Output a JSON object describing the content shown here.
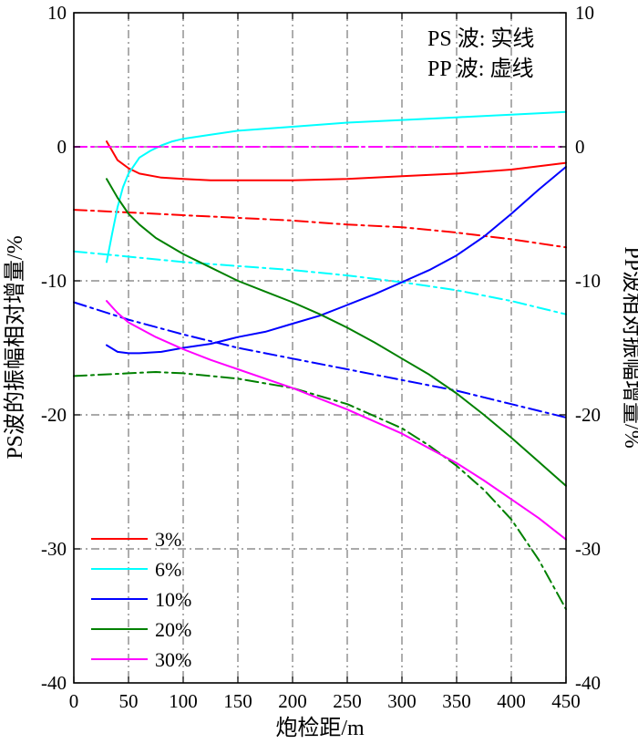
{
  "chart_data": {
    "type": "line",
    "title": "",
    "xlabel": "炮检距/m",
    "ylabel_left": "PS波的振幅相对增量/%",
    "ylabel_right": "PP波相对振幅增量/%",
    "xlim": [
      0,
      450
    ],
    "ylim": [
      -40,
      10
    ],
    "xticks": [
      0,
      50,
      100,
      150,
      200,
      250,
      300,
      350,
      400,
      450
    ],
    "yticks": [
      -40,
      -30,
      -20,
      -10,
      0,
      10
    ],
    "grid": true,
    "annotations": [
      "PS 波: 实线",
      "PP 波: 虚线"
    ],
    "legend_position": "bottom-left",
    "series": [
      {
        "name": "3%",
        "wave": "PS",
        "style": "solid",
        "color": "#ff0000",
        "x": [
          30,
          35,
          40,
          50,
          60,
          80,
          100,
          125,
          150,
          200,
          250,
          300,
          350,
          400,
          450
        ],
        "y": [
          0.4,
          -0.3,
          -1.0,
          -1.6,
          -2.0,
          -2.3,
          -2.4,
          -2.5,
          -2.5,
          -2.5,
          -2.4,
          -2.2,
          -2.0,
          -1.7,
          -1.2
        ]
      },
      {
        "name": "3%",
        "wave": "PP",
        "style": "dashdot",
        "color": "#ff0000",
        "x": [
          0,
          50,
          100,
          150,
          200,
          250,
          300,
          350,
          400,
          450
        ],
        "y": [
          -4.7,
          -4.9,
          -5.1,
          -5.3,
          -5.5,
          -5.8,
          -6.0,
          -6.4,
          -6.9,
          -7.5
        ]
      },
      {
        "name": "6%",
        "wave": "PS",
        "style": "solid",
        "color": "#00ffff",
        "x": [
          30,
          35,
          40,
          45,
          50,
          60,
          70,
          80,
          90,
          100,
          125,
          150,
          200,
          250,
          300,
          350,
          400,
          450
        ],
        "y": [
          -8.6,
          -6.5,
          -4.5,
          -3.0,
          -2.0,
          -0.8,
          -0.3,
          0.1,
          0.4,
          0.6,
          0.9,
          1.2,
          1.5,
          1.8,
          2.0,
          2.2,
          2.4,
          2.6
        ]
      },
      {
        "name": "6%",
        "wave": "PP",
        "style": "dashdot",
        "color": "#00ffff",
        "x": [
          0,
          50,
          100,
          150,
          200,
          250,
          300,
          350,
          400,
          450
        ],
        "y": [
          -7.8,
          -8.2,
          -8.6,
          -8.9,
          -9.2,
          -9.6,
          -10.1,
          -10.7,
          -11.5,
          -12.5
        ]
      },
      {
        "name": "10%",
        "wave": "PS",
        "style": "solid",
        "color": "#0000ff",
        "x": [
          30,
          40,
          50,
          60,
          80,
          100,
          125,
          150,
          175,
          200,
          225,
          250,
          275,
          300,
          325,
          350,
          375,
          400,
          425,
          450
        ],
        "y": [
          -14.8,
          -15.3,
          -15.4,
          -15.4,
          -15.3,
          -15.0,
          -14.7,
          -14.2,
          -13.8,
          -13.2,
          -12.6,
          -11.8,
          -11.0,
          -10.1,
          -9.2,
          -8.1,
          -6.7,
          -5.0,
          -3.2,
          -1.5
        ]
      },
      {
        "name": "10%",
        "wave": "PP",
        "style": "dashdot",
        "color": "#0000ff",
        "x": [
          0,
          50,
          100,
          150,
          200,
          250,
          300,
          350,
          400,
          450
        ],
        "y": [
          -11.6,
          -12.9,
          -14.0,
          -15.0,
          -15.8,
          -16.6,
          -17.4,
          -18.2,
          -19.2,
          -20.2
        ]
      },
      {
        "name": "20%",
        "wave": "PS",
        "style": "solid",
        "color": "#008000",
        "x": [
          30,
          40,
          50,
          60,
          75,
          100,
          125,
          150,
          175,
          200,
          225,
          250,
          275,
          300,
          325,
          350,
          375,
          400,
          425,
          450
        ],
        "y": [
          -2.4,
          -3.8,
          -5.0,
          -5.8,
          -6.8,
          -8.0,
          -9.0,
          -10.0,
          -10.8,
          -11.6,
          -12.5,
          -13.5,
          -14.6,
          -15.8,
          -17.0,
          -18.4,
          -20.0,
          -21.7,
          -23.5,
          -25.3
        ]
      },
      {
        "name": "20%",
        "wave": "PP",
        "style": "dashdot",
        "color": "#008000",
        "x": [
          0,
          25,
          50,
          75,
          100,
          150,
          200,
          250,
          300,
          325,
          350,
          375,
          400,
          425,
          450
        ],
        "y": [
          -17.1,
          -17.0,
          -16.9,
          -16.8,
          -16.9,
          -17.3,
          -18.0,
          -19.2,
          -21.0,
          -22.3,
          -23.8,
          -25.6,
          -27.8,
          -30.8,
          -34.5
        ]
      },
      {
        "name": "30%",
        "wave": "PS",
        "style": "solid",
        "color": "#ff00ff",
        "x": [
          30,
          40,
          50,
          75,
          100,
          125,
          150,
          175,
          200,
          225,
          250,
          275,
          300,
          325,
          350,
          375,
          400,
          425,
          450
        ],
        "y": [
          -11.5,
          -12.4,
          -13.1,
          -14.2,
          -15.1,
          -15.9,
          -16.6,
          -17.3,
          -18.0,
          -18.8,
          -19.6,
          -20.5,
          -21.4,
          -22.5,
          -23.6,
          -24.9,
          -26.3,
          -27.7,
          -29.3
        ]
      },
      {
        "name": "30%",
        "wave": "PP",
        "style": "dashdot",
        "color": "#ff00ff",
        "x": [
          0,
          450
        ],
        "y": [
          0,
          0
        ]
      }
    ]
  }
}
